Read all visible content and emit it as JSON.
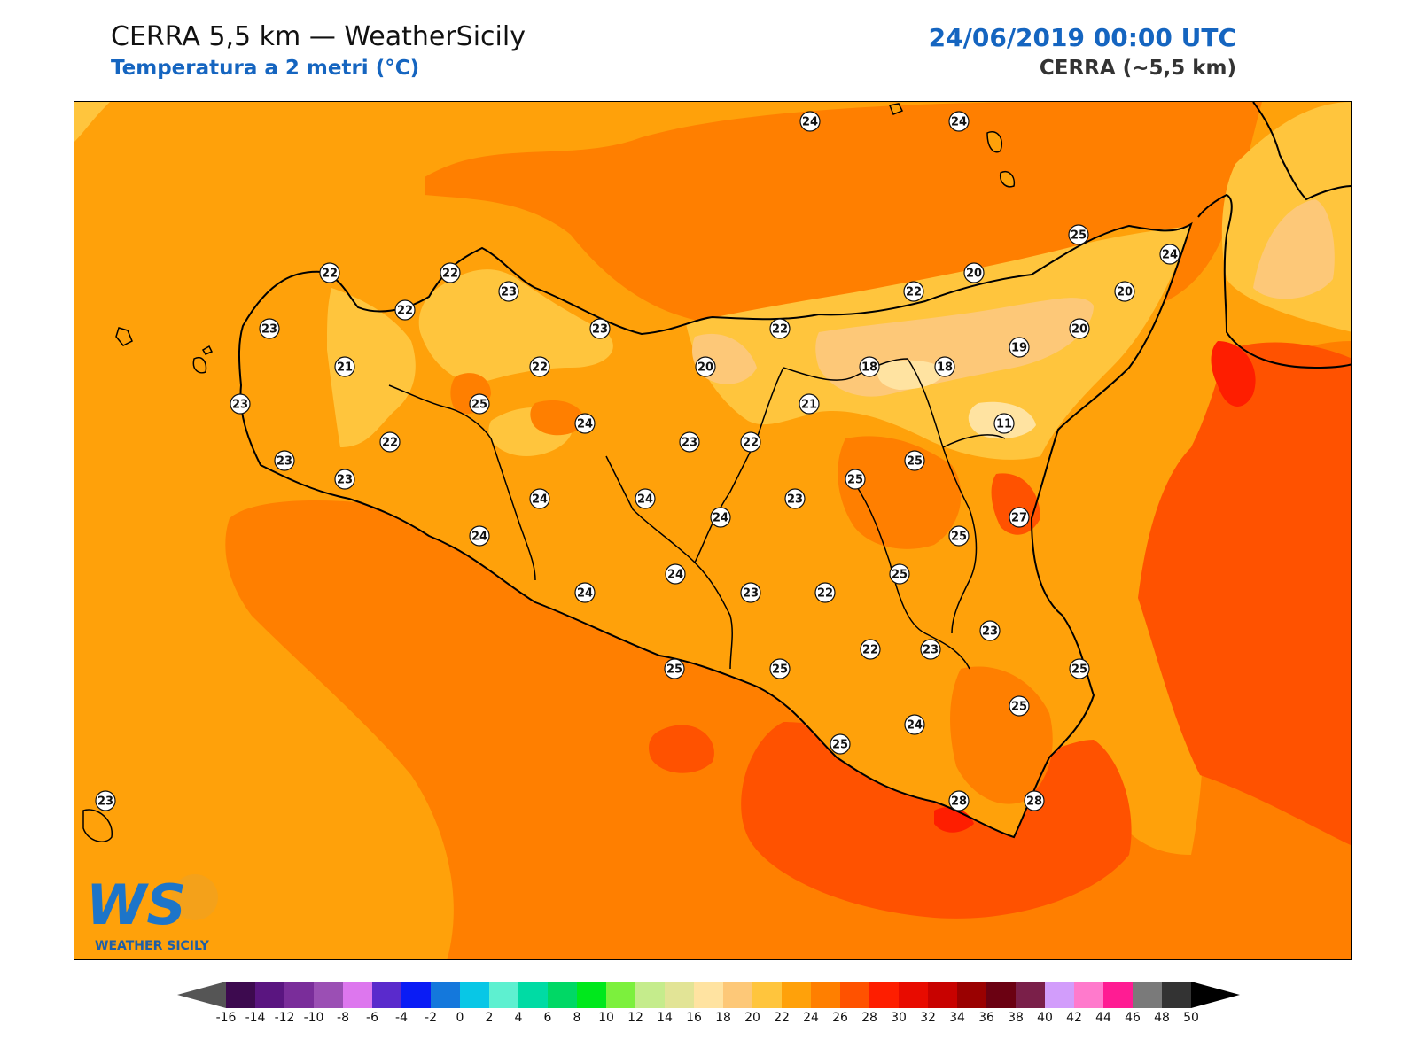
{
  "header": {
    "title": "CERRA 5,5 km — WeatherSicily",
    "subtitle": "Temperatura a 2 metri (°C)",
    "datetime": "24/06/2019 00:00 UTC",
    "model": "CERRA (~5,5 km)"
  },
  "logo": {
    "letters": "WS",
    "name": "WEATHER SICILY"
  },
  "colorbar": {
    "ticks": [
      "-16",
      "-14",
      "-12",
      "-10",
      "-8",
      "-6",
      "-4",
      "-2",
      "0",
      "2",
      "4",
      "6",
      "8",
      "10",
      "12",
      "14",
      "16",
      "18",
      "20",
      "22",
      "24",
      "26",
      "28",
      "30",
      "32",
      "34",
      "36",
      "38",
      "40",
      "42",
      "44",
      "46",
      "48",
      "50"
    ],
    "colors": [
      "#3d0a4f",
      "#5a1580",
      "#7a2d9a",
      "#9b4fb4",
      "#dd77ee",
      "#5a2acc",
      "#0a1cf5",
      "#1478dc",
      "#08c7e6",
      "#5ef0d0",
      "#00dba4",
      "#00d865",
      "#00e81c",
      "#7cf03d",
      "#c5ec8c",
      "#e2e496",
      "#ffe3a1",
      "#fdc878",
      "#ffc53d",
      "#ffa10a",
      "#ff7f00",
      "#ff5200",
      "#fe1e00",
      "#e80b00",
      "#c80200",
      "#9a0101",
      "#6b0112",
      "#7a1f49",
      "#d29dfb",
      "#ff7acc",
      "#ff1c93",
      "#7a7a7a",
      "#333333"
    ]
  },
  "stations": [
    {
      "v": "24"
    },
    {
      "v": "24"
    },
    {
      "v": "25"
    },
    {
      "v": "24"
    },
    {
      "v": "22"
    },
    {
      "v": "22"
    },
    {
      "v": "23"
    },
    {
      "v": "22"
    },
    {
      "v": "20"
    },
    {
      "v": "22"
    },
    {
      "v": "20"
    },
    {
      "v": "23"
    },
    {
      "v": "21"
    },
    {
      "v": "23"
    },
    {
      "v": "22"
    },
    {
      "v": "22"
    },
    {
      "v": "20"
    },
    {
      "v": "18"
    },
    {
      "v": "18"
    },
    {
      "v": "19"
    },
    {
      "v": "20"
    },
    {
      "v": "25"
    },
    {
      "v": "21"
    },
    {
      "v": "24"
    },
    {
      "v": "11"
    },
    {
      "v": "23"
    },
    {
      "v": "22"
    },
    {
      "v": "23"
    },
    {
      "v": "23"
    },
    {
      "v": "22"
    },
    {
      "v": "23"
    },
    {
      "v": "24"
    },
    {
      "v": "24"
    },
    {
      "v": "25"
    },
    {
      "v": "23"
    },
    {
      "v": "25"
    },
    {
      "v": "24"
    },
    {
      "v": "27"
    },
    {
      "v": "24"
    },
    {
      "v": "25"
    },
    {
      "v": "24"
    },
    {
      "v": "23"
    },
    {
      "v": "22"
    },
    {
      "v": "25"
    },
    {
      "v": "22"
    },
    {
      "v": "23"
    },
    {
      "v": "23"
    },
    {
      "v": "25"
    },
    {
      "v": "25"
    },
    {
      "v": "25"
    },
    {
      "v": "25"
    },
    {
      "v": "24"
    },
    {
      "v": "25"
    },
    {
      "v": "28"
    },
    {
      "v": "28"
    },
    {
      "v": "23"
    },
    {
      "v": "24"
    }
  ]
}
